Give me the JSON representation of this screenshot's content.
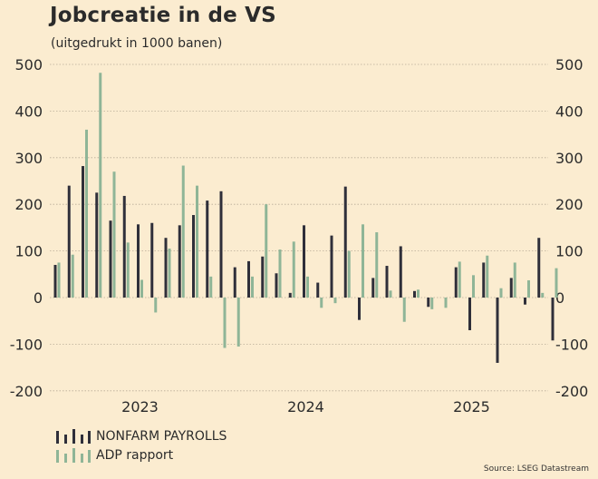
{
  "title": "Jobcreatie in de VS",
  "subtitle": "(uitgedrukt in 1000 banen)",
  "source": "Source: LSEG Datastream",
  "colors": {
    "background": "#fbecd0",
    "nonfarm": "#2f2f3a",
    "adp": "#8fb597",
    "grid": "#b9ad98"
  },
  "legend": [
    {
      "label": "NONFARM PAYROLLS",
      "color": "#2f2f3a"
    },
    {
      "label": "ADP rapport",
      "color": "#8fb597"
    }
  ],
  "chart_data": {
    "type": "bar",
    "ylim": [
      -200,
      500
    ],
    "yticks": [
      500,
      400,
      300,
      200,
      100,
      0,
      -100,
      -200
    ],
    "ytick_labels": [
      "500",
      "400",
      "300",
      "200",
      "100",
      "0",
      "-100",
      "-200"
    ],
    "grid": true,
    "x_labels": [
      {
        "label": "2023",
        "month_index": 6
      },
      {
        "label": "2024",
        "month_index": 18
      },
      {
        "label": "2025",
        "month_index": 30
      }
    ],
    "categories": [
      "2022-12",
      "2023-01",
      "2023-02",
      "2023-03",
      "2023-04",
      "2023-05",
      "2023-06",
      "2023-07",
      "2023-08",
      "2023-09",
      "2023-10",
      "2023-11",
      "2023-12",
      "2024-01",
      "2024-02",
      "2024-03",
      "2024-04",
      "2024-05",
      "2024-06",
      "2024-07",
      "2024-08",
      "2024-09",
      "2024-10",
      "2024-11",
      "2024-12",
      "2025-01",
      "2025-02",
      "2025-03",
      "2025-04",
      "2025-05",
      "2025-06",
      "2025-07",
      "2025-08",
      "2025-09",
      "2025-10",
      "2025-11",
      "2025-12",
      "2026-01"
    ],
    "series": [
      {
        "name": "NONFARM PAYROLLS",
        "values": [
          70,
          240,
          282,
          225,
          165,
          218,
          157,
          160,
          128,
          155,
          177,
          208,
          228,
          65,
          78,
          88,
          52,
          10,
          155,
          32,
          133,
          238,
          -48,
          42,
          68,
          110,
          14,
          -20,
          0,
          65,
          -70,
          75,
          -140,
          42,
          -15,
          128,
          -92,
          null
        ]
      },
      {
        "name": "ADP rapport",
        "values": [
          75,
          92,
          360,
          482,
          270,
          118,
          38,
          -32,
          105,
          283,
          240,
          45,
          -108,
          -105,
          45,
          200,
          103,
          120,
          45,
          -22,
          -12,
          100,
          157,
          140,
          15,
          -52,
          17,
          -25,
          -22,
          77,
          48,
          90,
          20,
          75,
          37,
          10,
          63,
          null
        ]
      }
    ]
  }
}
